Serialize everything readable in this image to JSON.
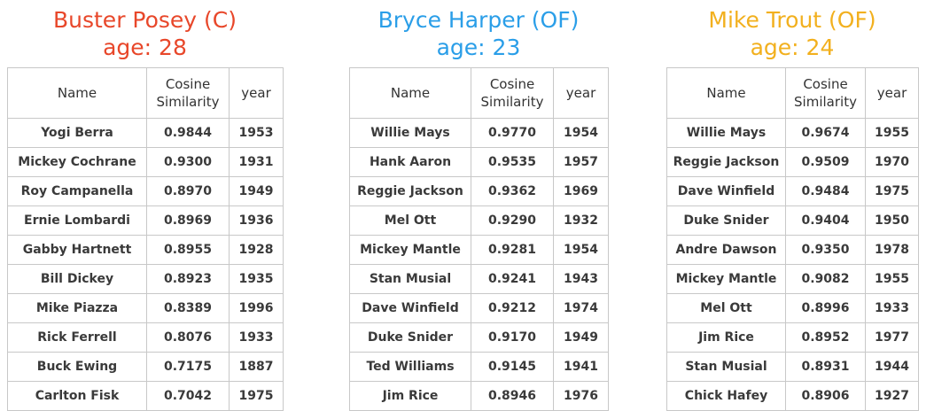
{
  "colors": {
    "posey": "#e8472a",
    "harper": "#2a9ee8",
    "trout": "#f2b01e"
  },
  "columns": {
    "name": "Name",
    "similarity_line1": "Cosine",
    "similarity_line2": "Similarity",
    "year": "year"
  },
  "panels": [
    {
      "player": "Buster Posey (C)",
      "age": "age: 28",
      "rows": [
        {
          "name": "Yogi Berra",
          "similarity": "0.9844",
          "year": "1953"
        },
        {
          "name": "Mickey Cochrane",
          "similarity": "0.9300",
          "year": "1931"
        },
        {
          "name": "Roy Campanella",
          "similarity": "0.8970",
          "year": "1949"
        },
        {
          "name": "Ernie Lombardi",
          "similarity": "0.8969",
          "year": "1936"
        },
        {
          "name": "Gabby Hartnett",
          "similarity": "0.8955",
          "year": "1928"
        },
        {
          "name": "Bill Dickey",
          "similarity": "0.8923",
          "year": "1935"
        },
        {
          "name": "Mike Piazza",
          "similarity": "0.8389",
          "year": "1996"
        },
        {
          "name": "Rick Ferrell",
          "similarity": "0.8076",
          "year": "1933"
        },
        {
          "name": "Buck Ewing",
          "similarity": "0.7175",
          "year": "1887"
        },
        {
          "name": "Carlton Fisk",
          "similarity": "0.7042",
          "year": "1975"
        }
      ]
    },
    {
      "player": "Bryce Harper (OF)",
      "age": "age: 23",
      "rows": [
        {
          "name": "Willie Mays",
          "similarity": "0.9770",
          "year": "1954"
        },
        {
          "name": "Hank Aaron",
          "similarity": "0.9535",
          "year": "1957"
        },
        {
          "name": "Reggie Jackson",
          "similarity": "0.9362",
          "year": "1969"
        },
        {
          "name": "Mel Ott",
          "similarity": "0.9290",
          "year": "1932"
        },
        {
          "name": "Mickey Mantle",
          "similarity": "0.9281",
          "year": "1954"
        },
        {
          "name": "Stan Musial",
          "similarity": "0.9241",
          "year": "1943"
        },
        {
          "name": "Dave Winfield",
          "similarity": "0.9212",
          "year": "1974"
        },
        {
          "name": "Duke Snider",
          "similarity": "0.9170",
          "year": "1949"
        },
        {
          "name": "Ted Williams",
          "similarity": "0.9145",
          "year": "1941"
        },
        {
          "name": "Jim Rice",
          "similarity": "0.8946",
          "year": "1976"
        }
      ]
    },
    {
      "player": "Mike Trout (OF)",
      "age": "age: 24",
      "rows": [
        {
          "name": "Willie Mays",
          "similarity": "0.9674",
          "year": "1955"
        },
        {
          "name": "Reggie Jackson",
          "similarity": "0.9509",
          "year": "1970"
        },
        {
          "name": "Dave Winfield",
          "similarity": "0.9484",
          "year": "1975"
        },
        {
          "name": "Duke Snider",
          "similarity": "0.9404",
          "year": "1950"
        },
        {
          "name": "Andre Dawson",
          "similarity": "0.9350",
          "year": "1978"
        },
        {
          "name": "Mickey Mantle",
          "similarity": "0.9082",
          "year": "1955"
        },
        {
          "name": "Mel Ott",
          "similarity": "0.8996",
          "year": "1933"
        },
        {
          "name": "Jim Rice",
          "similarity": "0.8952",
          "year": "1977"
        },
        {
          "name": "Stan Musial",
          "similarity": "0.8931",
          "year": "1944"
        },
        {
          "name": "Chick Hafey",
          "similarity": "0.8906",
          "year": "1927"
        }
      ]
    }
  ]
}
